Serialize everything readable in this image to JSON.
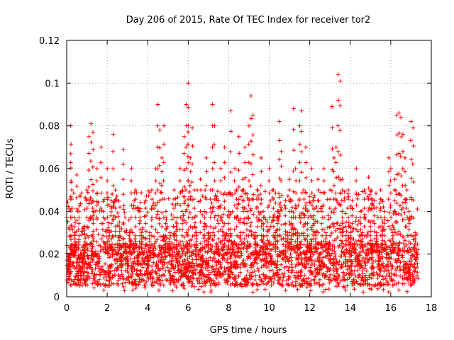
{
  "chart_data": {
    "type": "scatter",
    "title": "Day 206 of 2015, Rate Of TEC Index for receiver tor2",
    "xlabel": "GPS time / hours",
    "ylabel": "ROTI / TECUs",
    "xlim": [
      0,
      18
    ],
    "ylim": [
      0,
      0.12
    ],
    "xticks": [
      "0",
      "2",
      "4",
      "6",
      "8",
      "10",
      "12",
      "14",
      "16",
      "18"
    ],
    "yticks": [
      "0",
      "0.02",
      "0.04",
      "0.06",
      "0.08",
      "0.1",
      "0.12"
    ],
    "grid": true,
    "marker": "+",
    "color": "#ff0000",
    "series": [
      {
        "x": [
          0.1,
          0.2,
          0.2,
          0.25,
          0.3,
          0.4,
          0.5,
          0.6,
          0.7,
          0.8,
          0.9,
          1.0,
          1.1,
          1.2,
          1.3,
          1.3,
          1.4,
          1.5,
          1.6,
          1.7,
          1.8,
          1.9,
          2.0,
          2.1,
          2.2,
          2.3,
          2.4,
          2.5,
          2.6,
          2.7,
          2.8,
          2.9,
          3.0,
          3.1,
          3.2,
          3.3,
          3.4,
          3.5,
          3.6,
          3.7,
          3.8,
          3.9,
          4.0,
          4.1,
          4.2,
          4.3,
          4.4,
          4.5,
          4.6,
          4.7,
          4.8,
          4.9,
          5.0,
          5.1,
          5.2,
          5.3,
          5.4,
          5.5,
          5.6,
          5.7,
          5.8,
          5.9,
          6.0,
          6.0,
          6.1,
          6.2,
          6.3,
          6.4,
          6.5,
          6.6,
          6.7,
          6.8,
          6.9,
          7.0,
          7.1,
          7.2,
          7.3,
          7.4,
          7.5,
          7.6,
          7.7,
          7.8,
          7.9,
          8.0,
          8.1,
          8.2,
          8.3,
          8.4,
          8.5,
          8.6,
          8.7,
          8.8,
          8.9,
          9.0,
          9.1,
          9.2,
          9.3,
          9.4,
          9.5,
          9.6,
          9.7,
          9.8,
          9.9,
          10.0,
          10.1,
          10.2,
          10.3,
          10.4,
          10.5,
          10.6,
          10.7,
          10.8,
          10.9,
          11.0,
          11.1,
          11.2,
          11.3,
          11.4,
          11.5,
          11.6,
          11.7,
          11.8,
          11.9,
          12.0,
          12.1,
          12.2,
          12.3,
          12.4,
          12.5,
          12.6,
          12.7,
          12.8,
          12.9,
          13.0,
          13.1,
          13.2,
          13.3,
          13.4,
          13.5,
          13.6,
          13.6,
          13.7,
          13.8,
          13.9,
          14.0,
          14.1,
          14.2,
          14.3,
          14.4,
          14.5,
          14.6,
          14.7,
          14.8,
          14.9,
          15.0,
          15.1,
          15.2,
          15.3,
          15.4,
          15.5,
          15.6,
          15.7,
          15.8,
          15.9,
          16.0,
          16.1,
          16.2,
          16.3,
          16.4,
          16.5,
          16.6,
          16.7,
          16.8,
          16.9,
          17.0,
          17.1,
          17.2,
          17.3
        ],
        "y": [
          0.015,
          0.08,
          0.067,
          0.05,
          0.022,
          0.03,
          0.057,
          0.04,
          0.02,
          0.014,
          0.033,
          0.05,
          0.075,
          0.081,
          0.077,
          0.045,
          0.02,
          0.06,
          0.012,
          0.07,
          0.04,
          0.025,
          0.06,
          0.03,
          0.045,
          0.076,
          0.05,
          0.02,
          0.035,
          0.015,
          0.069,
          0.025,
          0.012,
          0.03,
          0.06,
          0.025,
          0.05,
          0.015,
          0.04,
          0.03,
          0.02,
          0.045,
          0.015,
          0.03,
          0.05,
          0.02,
          0.06,
          0.09,
          0.078,
          0.065,
          0.08,
          0.04,
          0.025,
          0.03,
          0.015,
          0.05,
          0.035,
          0.02,
          0.06,
          0.04,
          0.075,
          0.09,
          0.1,
          0.08,
          0.065,
          0.079,
          0.05,
          0.03,
          0.02,
          0.055,
          0.015,
          0.04,
          0.065,
          0.03,
          0.05,
          0.09,
          0.08,
          0.025,
          0.045,
          0.06,
          0.035,
          0.07,
          0.02,
          0.04,
          0.087,
          0.025,
          0.06,
          0.05,
          0.075,
          0.03,
          0.055,
          0.07,
          0.04,
          0.08,
          0.094,
          0.085,
          0.03,
          0.05,
          0.02,
          0.065,
          0.04,
          0.025,
          0.035,
          0.06,
          0.015,
          0.05,
          0.03,
          0.04,
          0.082,
          0.068,
          0.02,
          0.045,
          0.03,
          0.055,
          0.04,
          0.088,
          0.06,
          0.03,
          0.08,
          0.087,
          0.05,
          0.07,
          0.04,
          0.025,
          0.06,
          0.045,
          0.03,
          0.055,
          0.02,
          0.04,
          0.06,
          0.03,
          0.025,
          0.05,
          0.089,
          0.065,
          0.07,
          0.104,
          0.101,
          0.055,
          0.04,
          0.02,
          0.035,
          0.05,
          0.03,
          0.045,
          0.025,
          0.06,
          0.015,
          0.04,
          0.03,
          0.05,
          0.02,
          0.056,
          0.035,
          0.025,
          0.045,
          0.03,
          0.015,
          0.05,
          0.035,
          0.04,
          0.02,
          0.065,
          0.06,
          0.03,
          0.055,
          0.085,
          0.086,
          0.084,
          0.076,
          0.065,
          0.05,
          0.04,
          0.082,
          0.079,
          0.03,
          0.02
        ]
      }
    ],
    "dense_band": {
      "y_min": 0.005,
      "y_max": 0.025,
      "x_min": 0.0,
      "x_max": 17.35
    }
  }
}
